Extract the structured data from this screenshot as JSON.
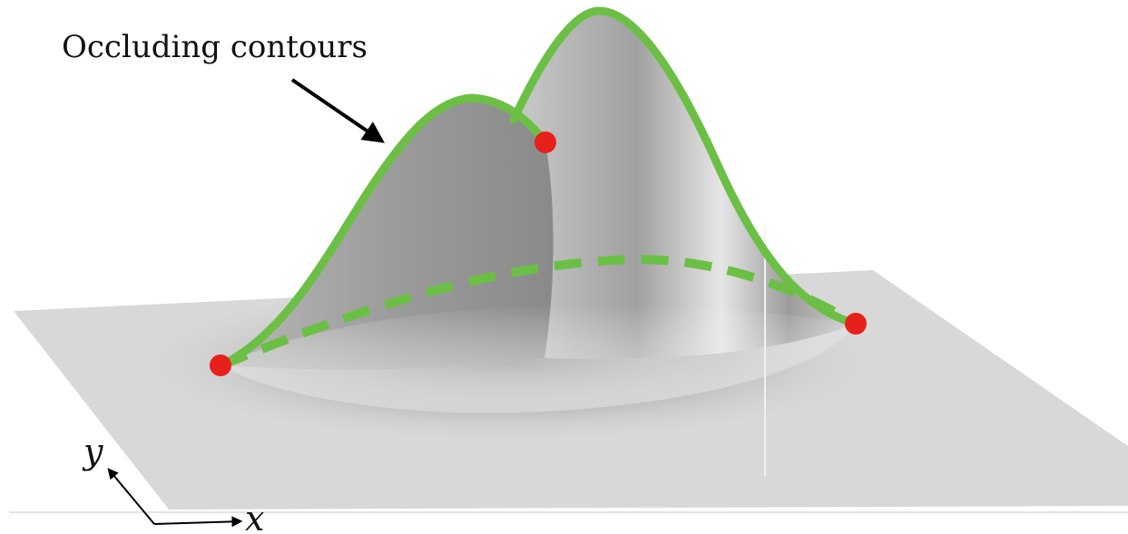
{
  "annotation": {
    "text": "Occluding contours"
  },
  "axes": {
    "x_label": "x",
    "y_label": "y"
  },
  "colors": {
    "contour": "#6cbf45",
    "endpoint": "#e8201c",
    "plane": "#d6d6d6",
    "surface_light": "#e4e4e4",
    "surface_dark": "#8a8a8a",
    "arrow": "#000000"
  },
  "scene": {
    "surface": "two-peak-gaussian",
    "solid_contour_count": 2,
    "dashed_contour_count": 1,
    "endpoint_count": 3
  }
}
